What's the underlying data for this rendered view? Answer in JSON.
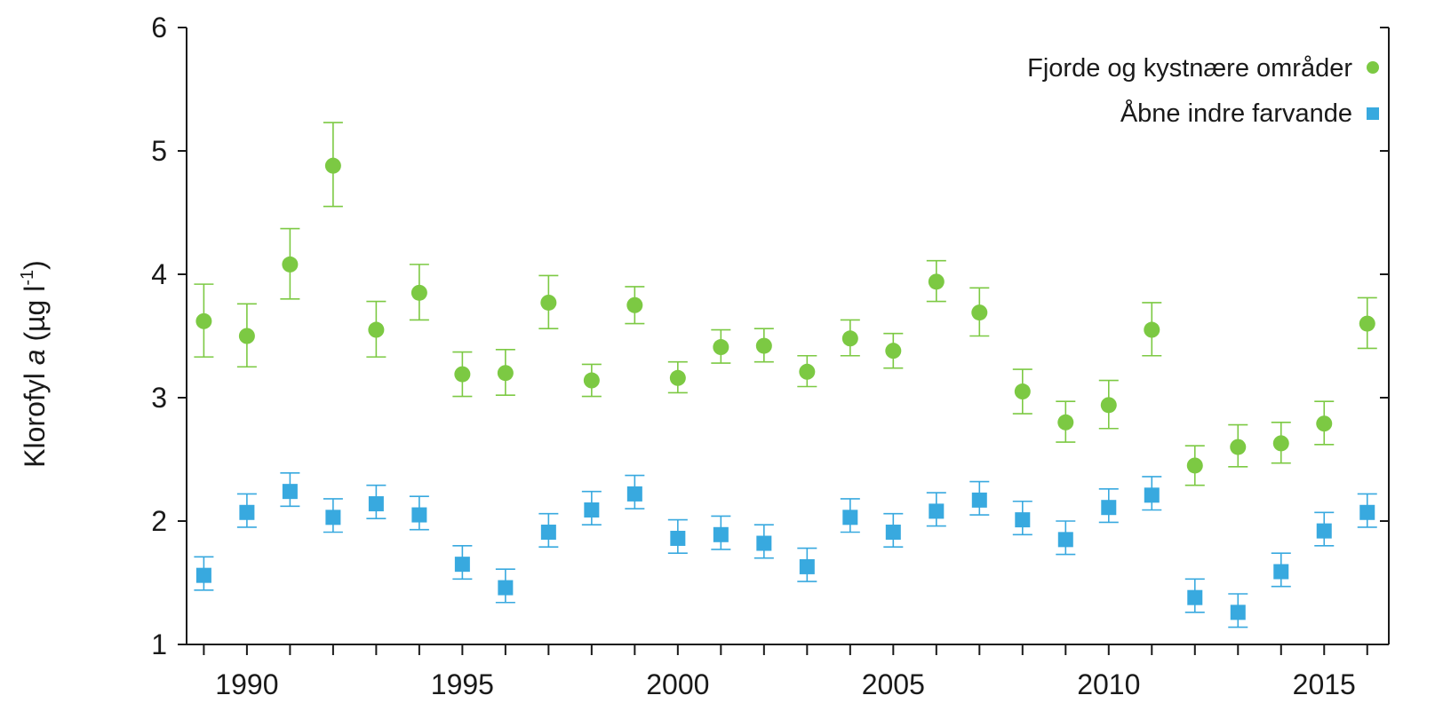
{
  "chart_data": {
    "type": "scatter",
    "ylabel_parts": [
      "Klorofyl ",
      "a",
      " (µg l",
      "-1",
      ")"
    ],
    "ylim": [
      1,
      6
    ],
    "yticks": [
      "1",
      "2",
      "3",
      "4",
      "5",
      "6"
    ],
    "xlim": [
      1988.6,
      2016.5
    ],
    "xticks": [
      "1990",
      "1995",
      "2000",
      "2005",
      "2010",
      "2015"
    ],
    "grid": false,
    "legend_position": "top-right",
    "error_bars": true,
    "series": [
      {
        "name": "Fjorde og kystnære områder",
        "marker": "circle",
        "color": "#7cc943",
        "x": [
          1989,
          1990,
          1991,
          1992,
          1993,
          1994,
          1995,
          1996,
          1997,
          1998,
          1999,
          2000,
          2001,
          2002,
          2003,
          2004,
          2005,
          2006,
          2007,
          2008,
          2009,
          2010,
          2011,
          2012,
          2013,
          2014,
          2015,
          2016
        ],
        "y": [
          3.62,
          3.5,
          4.08,
          4.88,
          3.55,
          3.85,
          3.19,
          3.2,
          3.77,
          3.14,
          3.75,
          3.16,
          3.41,
          3.42,
          3.21,
          3.48,
          3.38,
          3.94,
          3.69,
          3.05,
          2.8,
          2.94,
          3.55,
          2.45,
          2.6,
          2.63,
          2.79,
          3.6
        ],
        "err_low": [
          3.33,
          3.25,
          3.8,
          4.55,
          3.33,
          3.63,
          3.01,
          3.02,
          3.56,
          3.01,
          3.6,
          3.04,
          3.28,
          3.29,
          3.09,
          3.34,
          3.24,
          3.78,
          3.5,
          2.87,
          2.64,
          2.75,
          3.34,
          2.29,
          2.44,
          2.47,
          2.62,
          3.4
        ],
        "err_high": [
          3.92,
          3.76,
          4.37,
          5.23,
          3.78,
          4.08,
          3.37,
          3.39,
          3.99,
          3.27,
          3.9,
          3.29,
          3.55,
          3.56,
          3.34,
          3.63,
          3.52,
          4.11,
          3.89,
          3.23,
          2.97,
          3.14,
          3.77,
          2.61,
          2.78,
          2.8,
          2.97,
          3.81
        ]
      },
      {
        "name": "Åbne indre farvande",
        "marker": "square",
        "color": "#38a9df",
        "x": [
          1989,
          1990,
          1991,
          1992,
          1993,
          1994,
          1995,
          1996,
          1997,
          1998,
          1999,
          2000,
          2001,
          2002,
          2003,
          2004,
          2005,
          2006,
          2007,
          2008,
          2009,
          2010,
          2011,
          2012,
          2013,
          2014,
          2015,
          2016
        ],
        "y": [
          1.56,
          2.07,
          2.24,
          2.03,
          2.14,
          2.05,
          1.65,
          1.46,
          1.91,
          2.09,
          2.22,
          1.86,
          1.89,
          1.82,
          1.63,
          2.03,
          1.91,
          2.08,
          2.17,
          2.01,
          1.85,
          2.11,
          2.21,
          1.38,
          1.26,
          1.59,
          1.92,
          2.07
        ]
      }
    ]
  },
  "colors": {
    "axis": "#1a1a1a",
    "green": "#7cc943",
    "blue": "#38a9df"
  }
}
